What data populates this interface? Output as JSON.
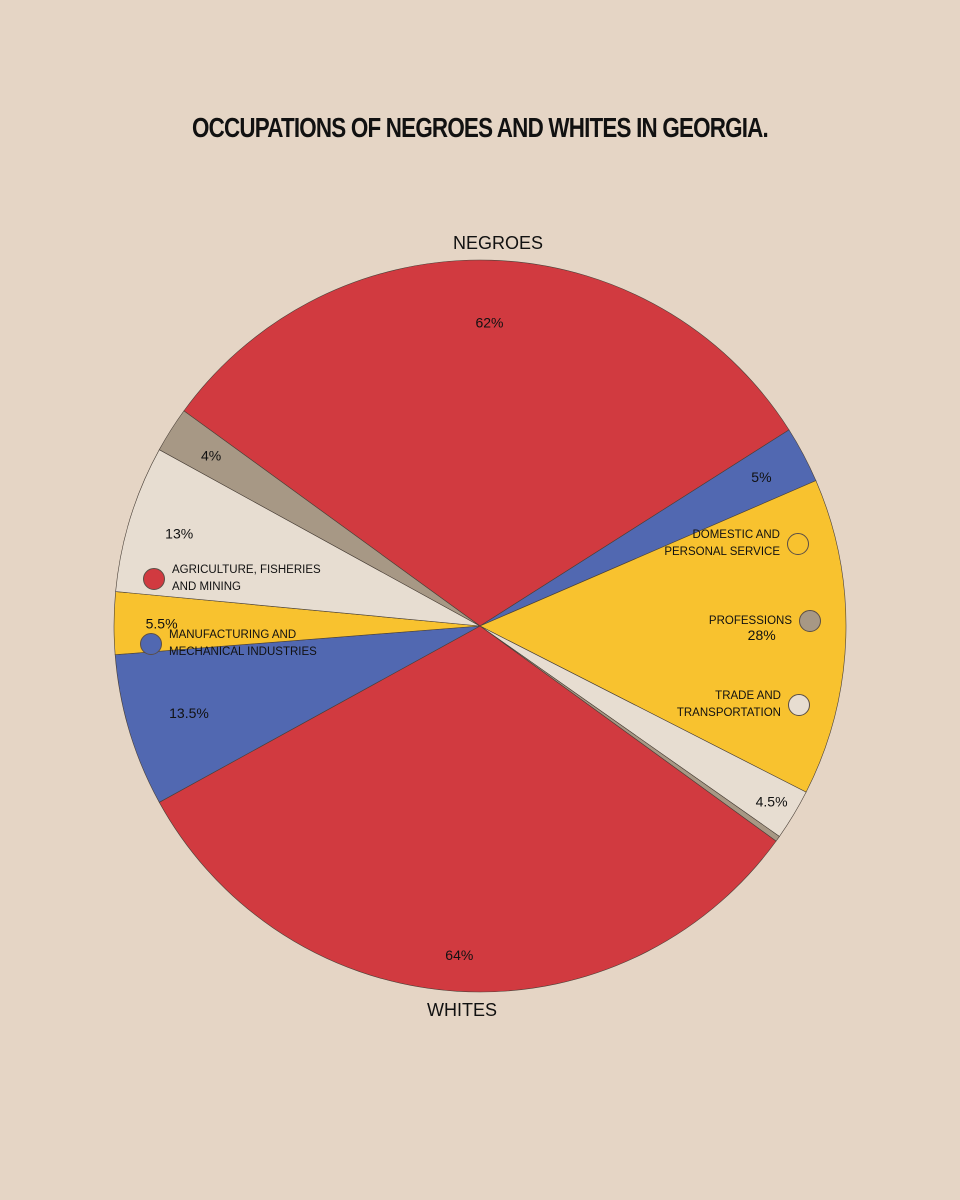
{
  "title": "OCCUPATIONS OF NEGROES AND WHITES IN GEORGIA.",
  "chart_data": {
    "type": "pie",
    "title": "OCCUPATIONS OF NEGROES AND WHITES IN GEORGIA.",
    "legend_placement": "sides",
    "categories": [
      {
        "key": "agriculture",
        "label": "AGRICULTURE, FISHERIES AND MINING",
        "color": "#D13A40"
      },
      {
        "key": "manufacturing",
        "label": "MANUFACTURING AND MECHANICAL INDUSTRIES",
        "color": "#5168B1"
      },
      {
        "key": "domestic",
        "label": "DOMESTIC AND PERSONAL SERVICE",
        "color": "#F8C22F"
      },
      {
        "key": "professions",
        "label": "PROFESSIONS",
        "color": "#A79885"
      },
      {
        "key": "trade",
        "label": "TRADE AND TRANSPORTATION",
        "color": "#E7DDD1"
      }
    ],
    "series": [
      {
        "name": "NEGROES",
        "slices": [
          {
            "key": "agriculture",
            "value": 62,
            "label": "62%"
          },
          {
            "key": "manufacturing",
            "value": 5,
            "label": "5%"
          },
          {
            "key": "domestic",
            "value": 28,
            "label": "28%"
          },
          {
            "key": "trade",
            "value": 4.5,
            "label": "4.5%"
          },
          {
            "key": "professions",
            "value": 0.5,
            "label": ""
          }
        ]
      },
      {
        "name": "WHITES",
        "slices": [
          {
            "key": "agriculture",
            "value": 64,
            "label": "64%"
          },
          {
            "key": "manufacturing",
            "value": 13.5,
            "label": "13.5%"
          },
          {
            "key": "domestic",
            "value": 5.5,
            "label": "5.5%"
          },
          {
            "key": "trade",
            "value": 13,
            "label": "13%"
          },
          {
            "key": "professions",
            "value": 4,
            "label": "4%"
          }
        ]
      }
    ]
  },
  "legend": {
    "agriculture": "AGRICULTURE, FISHERIES AND MINING",
    "manufacturing": "MANUFACTURING AND MECHANICAL INDUSTRIES",
    "domestic": "DOMESTIC AND PERSONAL SERVICE",
    "professions": "PROFESSIONS",
    "trade": "TRADE AND TRANSPORTATION"
  },
  "colors": {
    "background": "#E5D5C5",
    "agriculture": "#D13A40",
    "manufacturing": "#5168B1",
    "domestic": "#F8C22F",
    "professions": "#A79885",
    "trade": "#E7DDD1"
  }
}
